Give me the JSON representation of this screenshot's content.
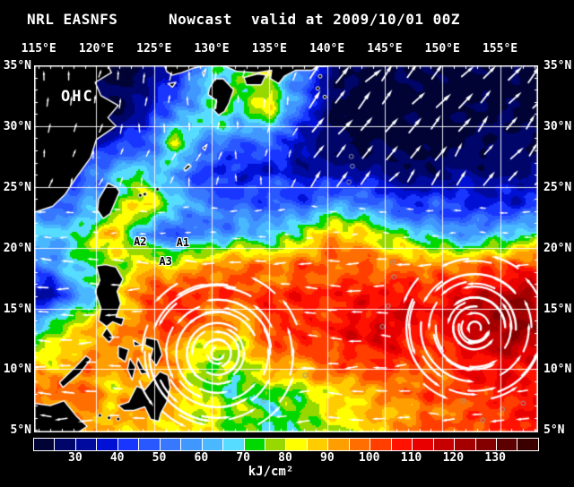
{
  "header": {
    "left": "NRL EASNFS",
    "center": "Nowcast",
    "right": "valid at 2009/10/01 00Z"
  },
  "map_overlay": {
    "field_label": "OHC",
    "annotations": [
      {
        "label": "A1",
        "lon": 127.5,
        "lat": 20.4
      },
      {
        "label": "A2",
        "lon": 123.8,
        "lat": 20.5
      },
      {
        "label": "A3",
        "lon": 126.0,
        "lat": 18.9
      }
    ]
  },
  "chart_data": {
    "type": "heatmap",
    "title": "NRL EASNFS  Nowcast  valid at 2009/10/01 00Z",
    "field": "OHC",
    "unit": "kJ/cm²",
    "xlabel": "",
    "ylabel": "",
    "x_ticks": {
      "labels": [
        "115°E",
        "120°E",
        "125°E",
        "130°E",
        "135°E",
        "140°E",
        "145°E",
        "150°E",
        "155°E"
      ],
      "values": [
        115,
        120,
        125,
        130,
        135,
        140,
        145,
        150,
        155
      ]
    },
    "y_ticks": {
      "labels": [
        "35°N",
        "30°N",
        "25°N",
        "20°N",
        "15°N",
        "10°N",
        "5°N"
      ],
      "values": [
        35,
        30,
        25,
        20,
        15,
        10,
        5
      ]
    },
    "lon_range": [
      114.6,
      158.3
    ],
    "lat_range": [
      4.8,
      35.0
    ],
    "grid_lines": {
      "lon_step": 5,
      "lat_step": 5,
      "color": "#ffffff"
    },
    "grid": {
      "ncols": 16,
      "nrows": 12,
      "order": "west_to_east_by_row, north_to_south",
      "note": "OHC kJ/cm2, null = land",
      "values": [
        [
          null,
          null,
          25,
          27,
          40,
          null,
          70,
          80,
          50,
          28,
          24,
          23,
          23,
          23,
          23,
          23
        ],
        [
          null,
          null,
          25,
          32,
          50,
          75,
          70,
          80,
          45,
          25,
          23,
          23,
          23,
          23,
          23,
          23
        ],
        [
          null,
          28,
          35,
          45,
          80,
          55,
          50,
          45,
          35,
          25,
          23,
          24,
          23,
          23,
          25,
          25
        ],
        [
          null,
          45,
          60,
          70,
          55,
          45,
          42,
          40,
          35,
          30,
          32,
          28,
          28,
          30,
          28,
          30
        ],
        [
          50,
          55,
          null,
          92,
          70,
          50,
          48,
          50,
          48,
          55,
          50,
          42,
          42,
          45,
          40,
          42
        ],
        [
          65,
          75,
          96,
          55,
          48,
          55,
          62,
          68,
          75,
          92,
          86,
          72,
          62,
          58,
          65,
          72
        ],
        [
          55,
          72,
          null,
          88,
          85,
          90,
          95,
          95,
          98,
          100,
          100,
          95,
          90,
          95,
          100,
          102
        ],
        [
          32,
          60,
          null,
          100,
          103,
          104,
          100,
          104,
          105,
          108,
          112,
          110,
          108,
          113,
          118,
          122
        ],
        [
          70,
          85,
          null,
          98,
          102,
          96,
          88,
          100,
          104,
          108,
          113,
          114,
          108,
          113,
          120,
          124
        ],
        [
          80,
          92,
          null,
          95,
          90,
          78,
          82,
          95,
          100,
          104,
          106,
          108,
          104,
          108,
          113,
          114
        ],
        [
          95,
          100,
          85,
          null,
          95,
          75,
          72,
          76,
          80,
          86,
          90,
          98,
          100,
          104,
          108,
          110
        ],
        [
          null,
          95,
          90,
          null,
          88,
          82,
          76,
          72,
          76,
          80,
          85,
          93,
          98,
          100,
          104,
          108
        ]
      ]
    },
    "colorbar": {
      "min": 20,
      "max": 140,
      "interval": 5,
      "tick_values": [
        30,
        40,
        50,
        60,
        70,
        80,
        90,
        100,
        110,
        120,
        130
      ],
      "unit": "kJ/cm²",
      "colors": [
        "#000334",
        "#00056a",
        "#000a9e",
        "#0010d4",
        "#1836ff",
        "#2a58ff",
        "#3878ff",
        "#4098ff",
        "#4ab8ff",
        "#56dcff",
        "#00d800",
        "#96d800",
        "#ffff00",
        "#ffcc00",
        "#ff9e00",
        "#ff6e00",
        "#ff3e00",
        "#ff1200",
        "#e80000",
        "#c60000",
        "#a40000",
        "#840000",
        "#5c0000",
        "#3a0000"
      ]
    },
    "cyclone_swirls": [
      {
        "lon": 130.5,
        "lat": 11.3
      },
      {
        "lon": 152.8,
        "lat": 13.4
      }
    ],
    "wind_arrows": {
      "color": "#ffffff",
      "regimes": [
        {
          "region": "north of 30N, east of 133E",
          "toward": "NE",
          "size": "large"
        },
        {
          "region": "24N-30N band",
          "toward": "W",
          "size": "small"
        },
        {
          "region": "south of 24N trade winds",
          "toward": "W",
          "size": "medium"
        },
        {
          "region": "near cyclones",
          "pattern": "counterclockwise spiral"
        }
      ]
    }
  }
}
